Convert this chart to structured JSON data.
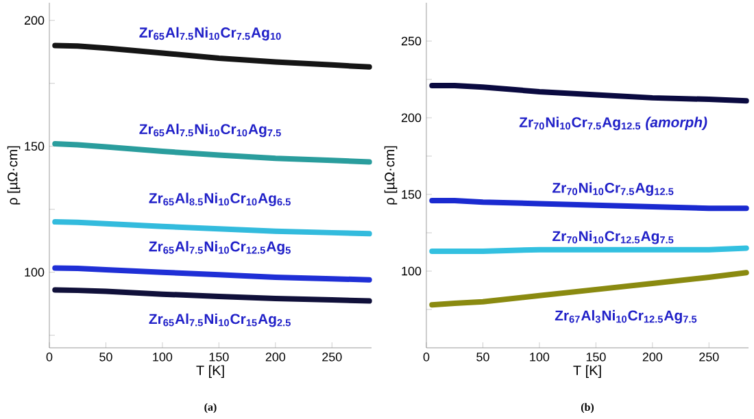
{
  "chart_data": [
    {
      "type": "line",
      "title": "(a)",
      "xlabel": "T [K]",
      "ylabel": "ρ [µΩ·cm]",
      "legend": false,
      "grid": false,
      "xlim": [
        0,
        285
      ],
      "ylim": [
        70,
        207
      ],
      "xticks": [
        0,
        50,
        100,
        150,
        200,
        250
      ],
      "yticks": [
        {
          "value": 75,
          "label": null
        },
        100,
        {
          "value": 125,
          "label": null
        },
        150,
        {
          "value": 175,
          "label": null
        },
        200
      ],
      "x": [
        5,
        25,
        50,
        100,
        150,
        200,
        250,
        283
      ],
      "series": [
        {
          "name": "Zr$_{65}$Al$_{7.5}$Ni$_{10}$Cr$_{7.5}$Ag$_{10}$",
          "color": "#151515",
          "values": [
            190,
            189.8,
            189,
            187,
            185,
            183.5,
            182.3,
            181.5
          ]
        },
        {
          "name": "Zr$_{65}$Al$_{7.5}$Ni$_{10}$Cr$_{10}$Ag$_{7.5}$",
          "color": "#2a9d9d",
          "values": [
            151,
            150.6,
            149.8,
            148,
            146.5,
            145.2,
            144.4,
            143.8
          ]
        },
        {
          "name": "Zr$_{65}$Al$_{8.5}$Ni$_{10}$Cr$_{10}$Ag$_{6.5}$",
          "color": "#33bbdd",
          "values": [
            120,
            119.8,
            119.3,
            118.2,
            117.2,
            116.3,
            115.7,
            115.3
          ]
        },
        {
          "name": "Zr$_{65}$Al$_{7.5}$Ni$_{10}$Cr$_{12.5}$Ag$_{5}$",
          "color": "#1f2fd6",
          "values": [
            101.7,
            101.5,
            101,
            100,
            99,
            98,
            97.4,
            97
          ]
        },
        {
          "name": "Zr$_{65}$Al$_{7.5}$Ni$_{10}$Cr$_{15}$Ag$_{2.5}$",
          "color": "#10103a",
          "values": [
            93,
            92.8,
            92.4,
            91.3,
            90.4,
            89.6,
            89,
            88.6
          ]
        }
      ]
    },
    {
      "type": "line",
      "title": "(b)",
      "xlabel": "T [K]",
      "ylabel": "ρ [µΩ·cm]",
      "legend": false,
      "grid": false,
      "xlim": [
        0,
        285
      ],
      "ylim": [
        50,
        275
      ],
      "xticks": [
        0,
        50,
        100,
        150,
        200,
        250
      ],
      "yticks": [
        {
          "value": 75,
          "label": null
        },
        100,
        {
          "value": 125,
          "label": null
        },
        150,
        {
          "value": 175,
          "label": null
        },
        200,
        {
          "value": 225,
          "label": null
        },
        250
      ],
      "x": [
        5,
        25,
        50,
        100,
        150,
        200,
        250,
        283
      ],
      "series": [
        {
          "name": "Zr$_{70}$Ni$_{10}$Cr$_{7.5}$Ag$_{12.5}$ *(amorph)*",
          "color": "#0a0a40",
          "values": [
            221,
            221,
            220,
            217,
            215,
            213,
            212,
            211
          ]
        },
        {
          "name": "Zr$_{70}$Ni$_{10}$Cr$_{7.5}$Ag$_{12.5}$",
          "color": "#1a2ad0",
          "values": [
            146,
            146,
            145,
            144,
            143,
            142,
            141,
            141
          ]
        },
        {
          "name": "Zr$_{70}$Ni$_{10}$Cr$_{12.5}$Ag$_{7.5}$",
          "color": "#33c0e0",
          "values": [
            113,
            113,
            113,
            114,
            114,
            114,
            114,
            115
          ]
        },
        {
          "name": "Zr$_{67}$Al$_{3}$Ni$_{10}$Cr$_{12.5}$Ag$_{7.5}$",
          "color": "#8a8a10",
          "values": [
            78,
            79,
            80,
            84,
            88,
            92,
            96,
            99
          ]
        }
      ]
    }
  ]
}
